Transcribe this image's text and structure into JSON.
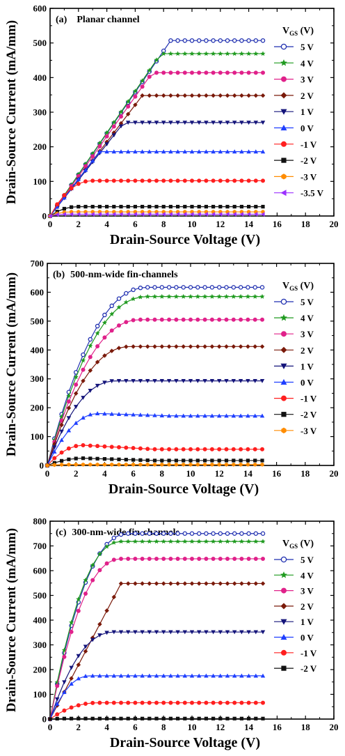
{
  "chart_data": [
    {
      "type": "line",
      "panel_label": "(a)",
      "title": "Planar channel",
      "xlabel": "Drain-Source Voltage (V)",
      "ylabel": "Drain-Source Current (mA/mm)",
      "xlim": [
        0,
        20
      ],
      "ylim": [
        0,
        600
      ],
      "xticks": [
        0,
        2,
        4,
        6,
        8,
        10,
        12,
        14,
        16,
        18,
        20
      ],
      "yticks": [
        0,
        100,
        200,
        300,
        400,
        500,
        600
      ],
      "legend_title": "VGS (V)",
      "legend_title_main": "V",
      "legend_title_sub": "GS",
      "legend_title_tail": " (V)",
      "legend_position": "right",
      "grid": false,
      "series": [
        {
          "name": "5 V",
          "color": "#1f2fb0",
          "marker": "circle-open",
          "sat": 507,
          "vk": 8.5,
          "shape": "linear"
        },
        {
          "name": "4 V",
          "color": "#1f9a1f",
          "marker": "star",
          "sat": 469,
          "vk": 7.8,
          "shape": "linear"
        },
        {
          "name": "3 V",
          "color": "#e0218a",
          "marker": "circle",
          "sat": 414,
          "vk": 7.2,
          "shape": "linear"
        },
        {
          "name": "2 V",
          "color": "#7a1a0a",
          "marker": "diamond",
          "sat": 348,
          "vk": 6.5,
          "shape": "linear"
        },
        {
          "name": "1 V",
          "color": "#14147a",
          "marker": "triangle-down",
          "sat": 270,
          "vk": 5.2,
          "shape": "linear"
        },
        {
          "name": "0 V",
          "color": "#1f3fff",
          "marker": "triangle-up",
          "sat": 186,
          "vk": 3.5,
          "shape": "linear"
        },
        {
          "name": "-1 V",
          "color": "#ff1f1f",
          "marker": "circle",
          "sat": 102,
          "vk": 3.0,
          "shape": "smooth"
        },
        {
          "name": "-2 V",
          "color": "#111111",
          "marker": "square",
          "sat": 27,
          "vk": 2.0,
          "shape": "smooth"
        },
        {
          "name": "-3 V",
          "color": "#ff8c00",
          "marker": "hexagon",
          "sat": 12,
          "vk": 1.5,
          "shape": "smooth"
        },
        {
          "name": "-3.5 V",
          "color": "#9b30ff",
          "marker": "triangle-left",
          "sat": 5,
          "vk": 1.0,
          "shape": "smooth"
        }
      ]
    },
    {
      "type": "line",
      "panel_label": "(b)",
      "title": "500-nm-wide fin-channels",
      "xlabel": "Drain-Source Voltage (V)",
      "ylabel": "Drain-Source Current (mA/mm)",
      "xlim": [
        0,
        20
      ],
      "ylim": [
        0,
        700
      ],
      "xticks": [
        0,
        2,
        4,
        6,
        8,
        10,
        12,
        14,
        16,
        18,
        20
      ],
      "yticks": [
        0,
        100,
        200,
        300,
        400,
        500,
        600,
        700
      ],
      "legend_title": "VGS (V)",
      "legend_title_main": "V",
      "legend_title_sub": "GS",
      "legend_title_tail": " (V)",
      "legend_position": "right",
      "grid": false,
      "series": [
        {
          "name": "5 V",
          "color": "#1f2fb0",
          "marker": "circle-open",
          "sat": 617,
          "vk": 7.0,
          "shape": "smooth"
        },
        {
          "name": "4 V",
          "color": "#1f9a1f",
          "marker": "star",
          "sat": 585,
          "vk": 7.0,
          "shape": "smooth"
        },
        {
          "name": "3 V",
          "color": "#e0218a",
          "marker": "circle",
          "sat": 505,
          "vk": 6.5,
          "shape": "smooth"
        },
        {
          "name": "2 V",
          "color": "#7a1a0a",
          "marker": "diamond",
          "sat": 412,
          "vk": 5.8,
          "shape": "smooth"
        },
        {
          "name": "1 V",
          "color": "#14147a",
          "marker": "triangle-down",
          "sat": 293,
          "vk": 4.8,
          "shape": "smooth"
        },
        {
          "name": "0 V",
          "color": "#1f3fff",
          "marker": "triangle-up",
          "sat": 172,
          "vk": 3.5,
          "shape": "peak",
          "peak": 180
        },
        {
          "name": "-1 V",
          "color": "#ff1f1f",
          "marker": "circle",
          "sat": 56,
          "vk": 2.5,
          "shape": "peak",
          "peak": 70
        },
        {
          "name": "-2 V",
          "color": "#111111",
          "marker": "square",
          "sat": 17,
          "vk": 2.5,
          "shape": "peak",
          "peak": 25
        },
        {
          "name": "-3 V",
          "color": "#ff8c00",
          "marker": "hexagon",
          "sat": 3,
          "vk": 1.5,
          "shape": "smooth"
        }
      ]
    },
    {
      "type": "line",
      "panel_label": "(c)",
      "title": "300-nm-wide fin-channels",
      "xlabel": "Drain-Source Voltage (V)",
      "ylabel": "Drain-Source Current (mA/mm)",
      "xlim": [
        0,
        20
      ],
      "ylim": [
        0,
        800
      ],
      "xticks": [
        0,
        2,
        4,
        6,
        8,
        10,
        12,
        14,
        16,
        18,
        20
      ],
      "yticks": [
        0,
        100,
        200,
        300,
        400,
        500,
        600,
        700,
        800
      ],
      "legend_title": "VGS (V)",
      "legend_title_main": "V",
      "legend_title_sub": "GS",
      "legend_title_tail": " (V)",
      "legend_position": "right",
      "grid": false,
      "series": [
        {
          "name": "5 V",
          "color": "#1f2fb0",
          "marker": "circle-open",
          "sat": 750,
          "vk": 5.5,
          "shape": "smooth"
        },
        {
          "name": "4 V",
          "color": "#1f9a1f",
          "marker": "star",
          "sat": 718,
          "vk": 5.0,
          "shape": "smooth"
        },
        {
          "name": "3 V",
          "color": "#e0218a",
          "marker": "circle",
          "sat": 648,
          "vk": 5.0,
          "shape": "smooth"
        },
        {
          "name": "2 V",
          "color": "#7a1a0a",
          "marker": "diamond",
          "sat": 548,
          "vk": 5.0,
          "shape": "linear"
        },
        {
          "name": "1 V",
          "color": "#14147a",
          "marker": "triangle-down",
          "sat": 352,
          "vk": 4.5,
          "shape": "smooth"
        },
        {
          "name": "0 V",
          "color": "#1f3fff",
          "marker": "triangle-up",
          "sat": 175,
          "vk": 2.8,
          "shape": "smooth"
        },
        {
          "name": "-1 V",
          "color": "#ff1f1f",
          "marker": "circle",
          "sat": 66,
          "vk": 3.5,
          "shape": "smooth"
        },
        {
          "name": "-2 V",
          "color": "#111111",
          "marker": "square",
          "sat": 2,
          "vk": 1.0,
          "shape": "smooth"
        }
      ]
    }
  ]
}
